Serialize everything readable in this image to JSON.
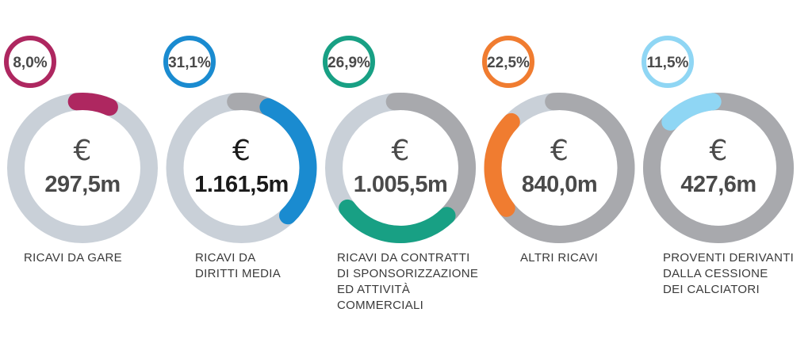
{
  "chart_data": {
    "type": "pie",
    "title": "",
    "currency_symbol": "€",
    "colors": {
      "remaining": "#c9d0d8",
      "previous": "#a8a9ad",
      "text": "#4a4a4a"
    },
    "items": [
      {
        "label": "RICAVI DA GARE",
        "percent": 8.0,
        "percent_label": "8,0%",
        "value_label": "297,5m",
        "value": 297.5,
        "color": "#ae2760"
      },
      {
        "label": "RICAVI DA\nDIRITTI MEDIA",
        "percent": 31.1,
        "percent_label": "31,1%",
        "value_label": "1.161,5m",
        "value": 1161.5,
        "color": "#1a8bd0"
      },
      {
        "label": "RICAVI DA CONTRATTI\nDI SPONSORIZZAZIONE\nED ATTIVITÀ\nCOMMERCIALI",
        "percent": 26.9,
        "percent_label": "26,9%",
        "value_label": "1.005,5m",
        "value": 1005.5,
        "color": "#18a084"
      },
      {
        "label": "ALTRI RICAVI",
        "percent": 22.5,
        "percent_label": "22,5%",
        "value_label": "840,0m",
        "value": 840.0,
        "color": "#f07c30"
      },
      {
        "label": "PROVENTI DERIVANTI\nDALLA CESSIONE\nDEI CALCIATORI",
        "percent": 11.5,
        "percent_label": "11,5%",
        "value_label": "427,6m",
        "value": 427.6,
        "color": "#8fd6f4"
      }
    ]
  }
}
